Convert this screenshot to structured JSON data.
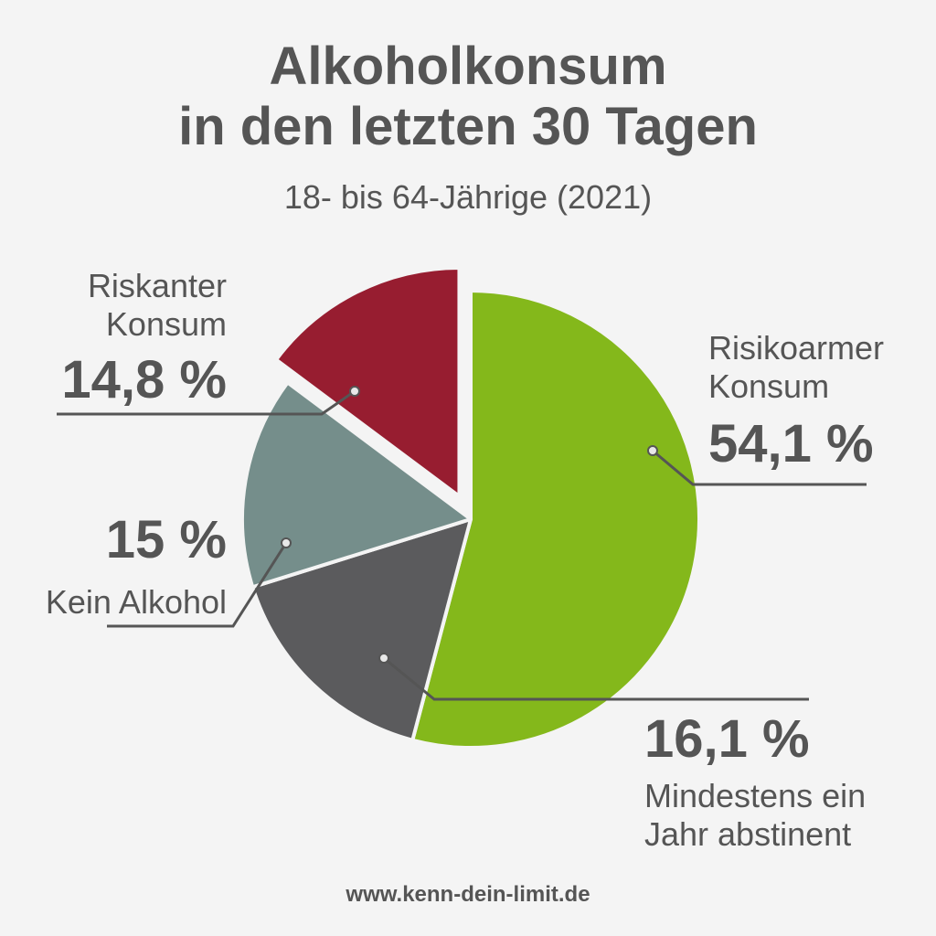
{
  "title": {
    "line1": "Alkoholkonsum",
    "line2": "in den letzten 30 Tagen"
  },
  "subtitle": "18- bis 64-Jährige (2021)",
  "chart_data": {
    "type": "pie",
    "slices": [
      {
        "key": "risikoarm",
        "label_line1": "Risikoarmer",
        "label_line2": "Konsum",
        "value": 54.1,
        "value_text": "54,1 %",
        "color": "#84b81b",
        "exploded": false
      },
      {
        "key": "abstinent",
        "label_line1": "Mindestens ein",
        "label_line2": "Jahr abstinent",
        "value": 16.1,
        "value_text": "16,1 %",
        "color": "#5b5b5d",
        "exploded": false
      },
      {
        "key": "kein",
        "label_line1": "Kein Alkohol",
        "label_line2": "",
        "value": 15,
        "value_text": "15 %",
        "color": "#758e8b",
        "exploded": false
      },
      {
        "key": "riskant",
        "label_line1": "Riskanter",
        "label_line2": "Konsum",
        "value": 14.8,
        "value_text": "14,8 %",
        "color": "#971d30",
        "exploded": true
      }
    ]
  },
  "footer": "www.kenn-dein-limit.de"
}
